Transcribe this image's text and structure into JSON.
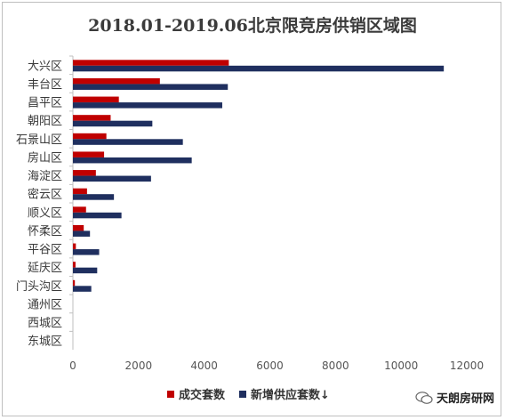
{
  "chart_data": {
    "type": "bar",
    "orientation": "horizontal",
    "title": "2018.01-2019.06北京限竞房供销区域图",
    "categories": [
      "大兴区",
      "丰台区",
      "昌平区",
      "朝阳区",
      "石景山区",
      "房山区",
      "海淀区",
      "密云区",
      "顺义区",
      "怀柔区",
      "平谷区",
      "延庆区",
      "门头沟区",
      "通州区",
      "西城区",
      "东城区"
    ],
    "series": [
      {
        "name": "成交套数",
        "color": "#c00000",
        "values": [
          4750,
          2650,
          1400,
          1150,
          1020,
          950,
          700,
          430,
          400,
          330,
          90,
          80,
          60,
          0,
          0,
          0
        ]
      },
      {
        "name": "新增供应套数↓",
        "color": "#1f2f5f",
        "values": [
          11300,
          4720,
          4550,
          2420,
          3350,
          3620,
          2380,
          1250,
          1480,
          520,
          800,
          740,
          560,
          0,
          0,
          0
        ]
      }
    ],
    "xlim": [
      0,
      12000
    ],
    "xticks": [
      0,
      2000,
      4000,
      6000,
      8000,
      10000,
      12000
    ],
    "grid": false,
    "legend_position": "bottom"
  },
  "watermark": {
    "text": "天朗房研网"
  }
}
